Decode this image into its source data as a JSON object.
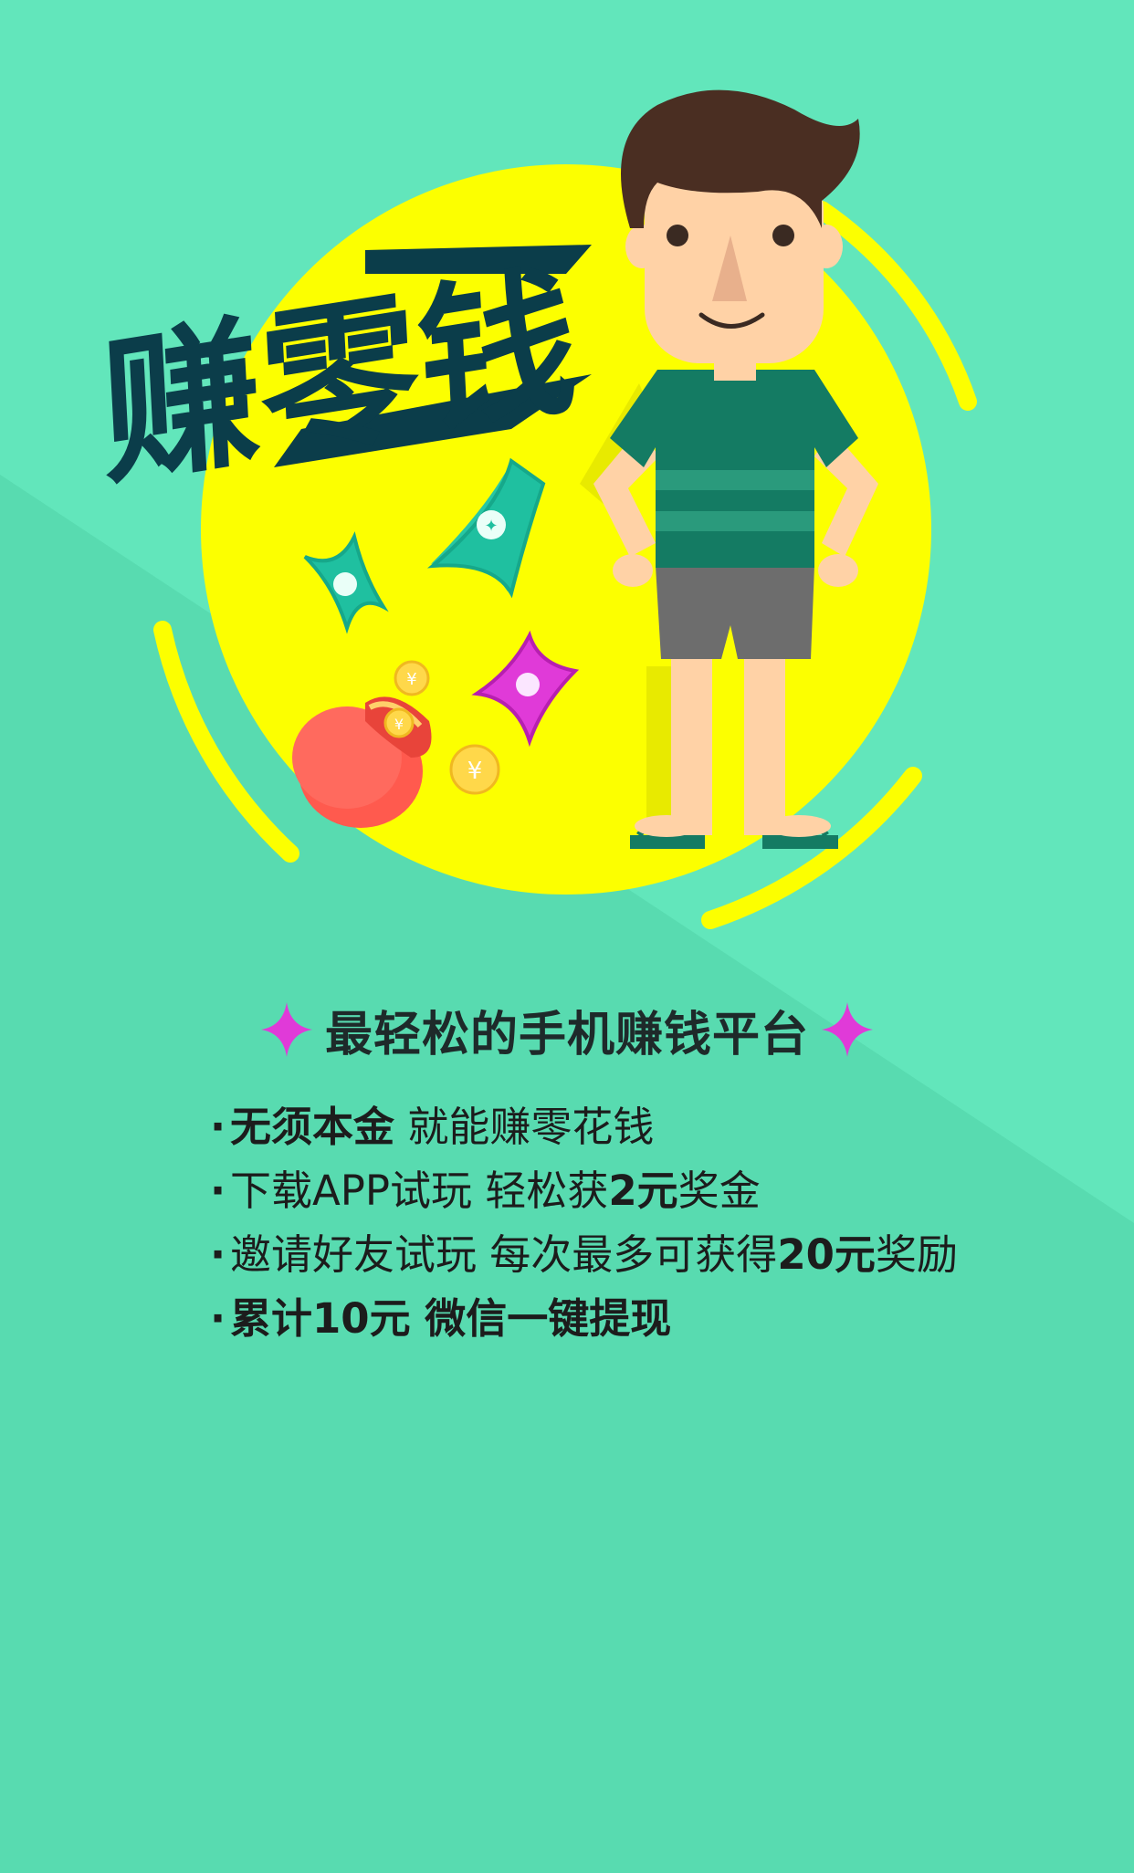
{
  "hero": {
    "title": "赚零钱",
    "coin_symbol": "¥"
  },
  "colors": {
    "background": "#5ddfb4",
    "circle": "#fcff00",
    "title_dark": "#0b3d4a",
    "shirt": "#147b63",
    "bag": "#ff5a4e",
    "sparkle_magenta": "#e03ad8"
  },
  "tagline": "最轻松的手机赚钱平台",
  "features": [
    {
      "bullet": "·",
      "bold": "无须本金",
      "text": " 就能赚零花钱"
    },
    {
      "bullet": "·",
      "text": "下载APP试玩 轻松获",
      "bold": "2元",
      "text2": "奖金"
    },
    {
      "bullet": "·",
      "text": "邀请好友试玩 每次最多可获得",
      "bold": "20元",
      "text2": "奖励"
    },
    {
      "bullet": "·",
      "bold": "累计10元 微信一键提现"
    }
  ]
}
